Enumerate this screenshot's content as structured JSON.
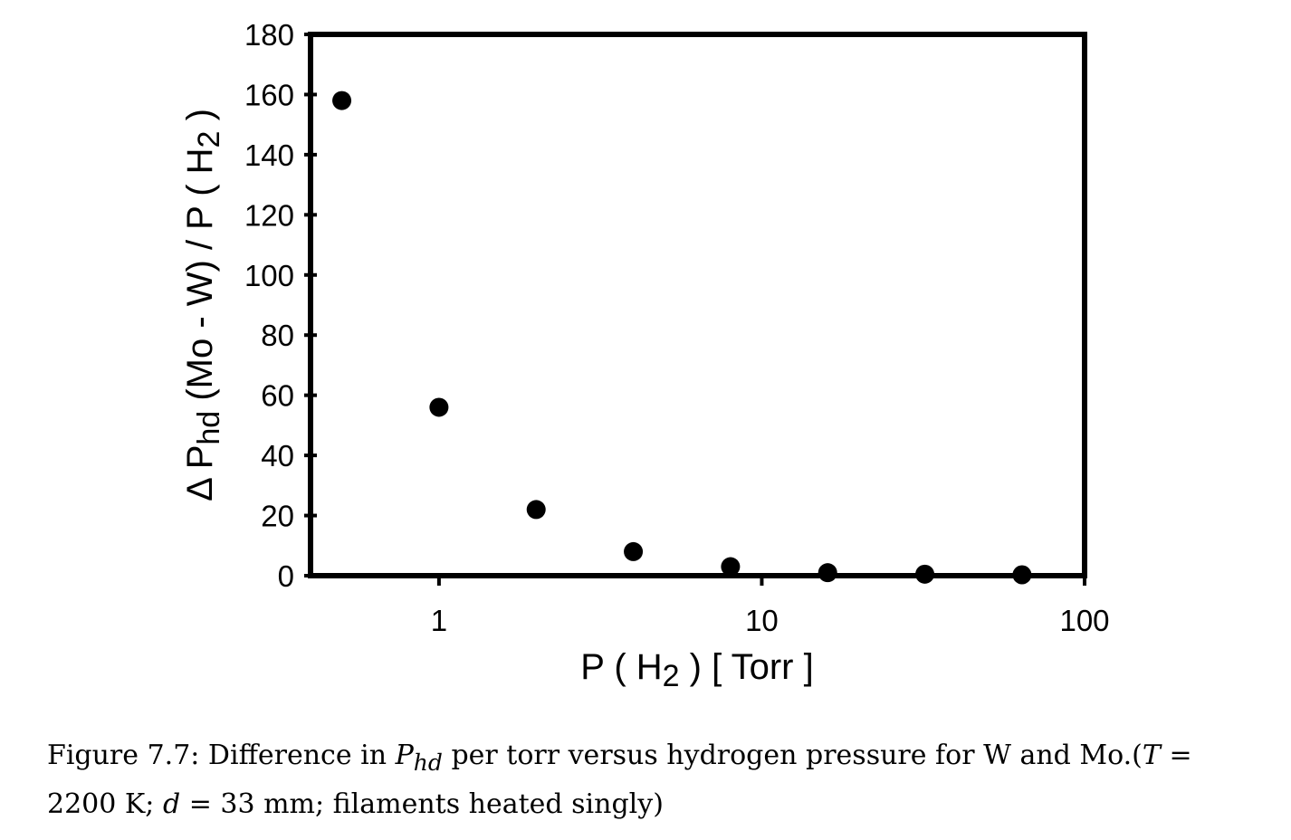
{
  "chart_data": {
    "type": "scatter",
    "x_scale": "log",
    "x": [
      0.5,
      1,
      2,
      4,
      8,
      16,
      32,
      64
    ],
    "y": [
      158,
      56,
      22,
      8,
      3,
      1,
      0.5,
      0.3
    ],
    "xlim": [
      0.4,
      100
    ],
    "ylim": [
      0,
      180
    ],
    "x_ticks": [
      "1",
      "10",
      "100"
    ],
    "y_ticks": [
      "0",
      "20",
      "40",
      "60",
      "80",
      "100",
      "120",
      "140",
      "160",
      "180"
    ],
    "xlabel": {
      "pre": "P ( H",
      "sub": "2",
      "post": " )  [ Torr ]"
    },
    "ylabel": {
      "pre": "Δ P",
      "sub": "hd",
      "mid": " (Mo - W) / P ( H",
      "sub2": "2",
      "post": " )"
    },
    "grid": false,
    "marker_color": "#000000"
  },
  "caption": {
    "figure_label": "Figure 7.7:",
    "part1": " Difference in ",
    "var_p": "P",
    "var_p_sub": "hd",
    "part2": " per torr versus hydrogen pressure for W and Mo.(",
    "var_t": "T",
    "part3": " = 2200 K; ",
    "var_d": "d",
    "part4": " = 33 mm; filaments heated singly)"
  }
}
